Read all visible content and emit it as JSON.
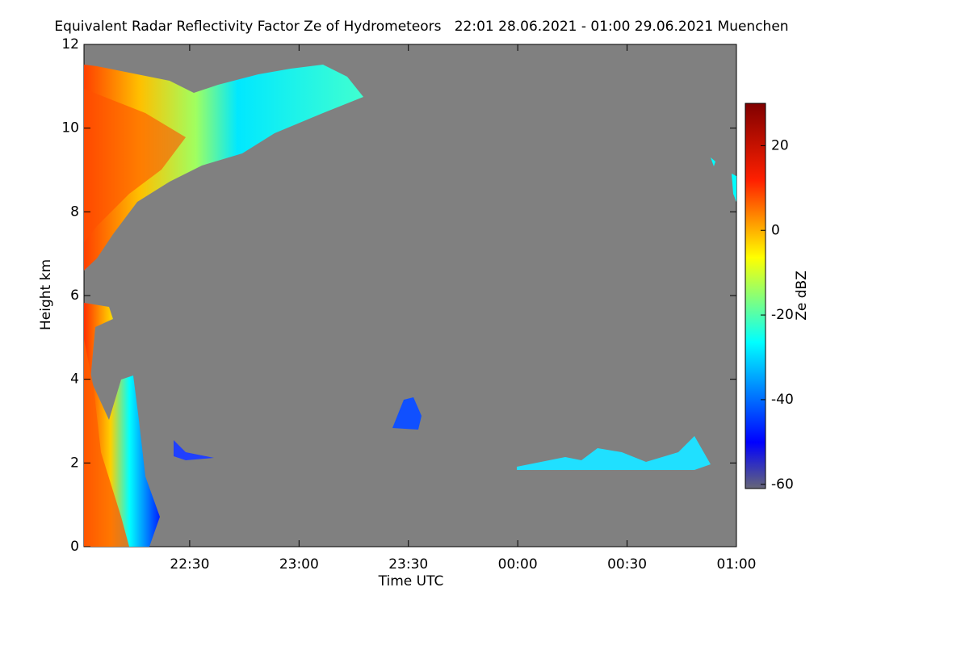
{
  "chart_data": {
    "type": "heatmap",
    "title": "Equivalent Radar Reflectivity Factor Ze of Hydrometeors   22:01 28.06.2021 - 01:00 29.06.2021 Muenchen",
    "x_label": "Time UTC",
    "y_label": "Height km",
    "xlim": [
      22.0167,
      25.0
    ],
    "xticks": [
      {
        "value": 22.5,
        "label": "22:30"
      },
      {
        "value": 23.0,
        "label": "23:00"
      },
      {
        "value": 23.5,
        "label": "23:30"
      },
      {
        "value": 24.0,
        "label": "00:00"
      },
      {
        "value": 24.5,
        "label": "00:30"
      },
      {
        "value": 25.0,
        "label": "01:00"
      }
    ],
    "ylim": [
      0,
      12
    ],
    "yticks": [
      0,
      2,
      4,
      6,
      8,
      10,
      12
    ],
    "colorbar_label": "Ze dBZ",
    "clim": [
      -61,
      30
    ],
    "cticks": [
      -60,
      -40,
      -20,
      0,
      20
    ],
    "colormap": "jet",
    "background": "#808080"
  }
}
